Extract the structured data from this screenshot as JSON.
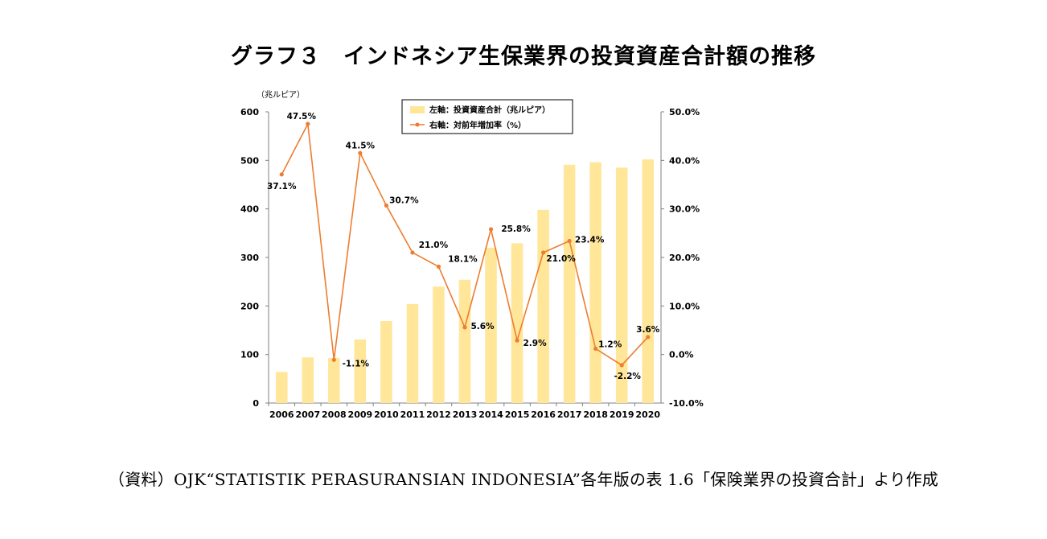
{
  "page_title": "グラフ３　インドネシア生保業界の投資資産合計額の推移",
  "source_note": "（資料）OJK“STATISTIK PERASURANSIAN INDONESIA”各年版の表 1.6「保険業界の投資合計」より作成",
  "chart_data": {
    "type": "bar+line",
    "categories": [
      "2006",
      "2007",
      "2008",
      "2009",
      "2010",
      "2011",
      "2012",
      "2013",
      "2014",
      "2015",
      "2016",
      "2017",
      "2018",
      "2019",
      "2020"
    ],
    "series": [
      {
        "name": "左軸：投資資産合計（兆ルピア）",
        "type": "bar",
        "axis": "left",
        "values": [
          64,
          94,
          93,
          131,
          169,
          204,
          240,
          254,
          320,
          329,
          398,
          491,
          496,
          485,
          502
        ]
      },
      {
        "name": "右軸：対前年増加率（%）",
        "type": "line",
        "axis": "right",
        "values": [
          37.1,
          47.5,
          -1.1,
          41.5,
          30.7,
          21.0,
          18.1,
          5.6,
          25.8,
          2.9,
          21.0,
          23.4,
          1.2,
          -2.2,
          3.6
        ],
        "labels": [
          "37.1%",
          "47.5%",
          "-1.1%",
          "41.5%",
          "30.7%",
          "21.0%",
          "18.1%",
          "5.6%",
          "25.8%",
          "2.9%",
          "21.0%",
          "23.4%",
          "1.2%",
          "-2.2%",
          "3.6%"
        ]
      }
    ],
    "left_axis": {
      "unit_label": "（兆ルピア）",
      "ylim": [
        0,
        600
      ],
      "ticks": [
        "0",
        "100",
        "200",
        "300",
        "400",
        "500",
        "600"
      ]
    },
    "right_axis": {
      "ylim": [
        -10,
        50
      ],
      "ticks": [
        "-10.0%",
        "0.0%",
        "10.0%",
        "20.0%",
        "30.0%",
        "40.0%",
        "50.0%"
      ]
    },
    "legend_position": "top-center",
    "colors": {
      "bar": "#FFE699",
      "line": "#ED7D31",
      "axis": "#808080"
    }
  }
}
